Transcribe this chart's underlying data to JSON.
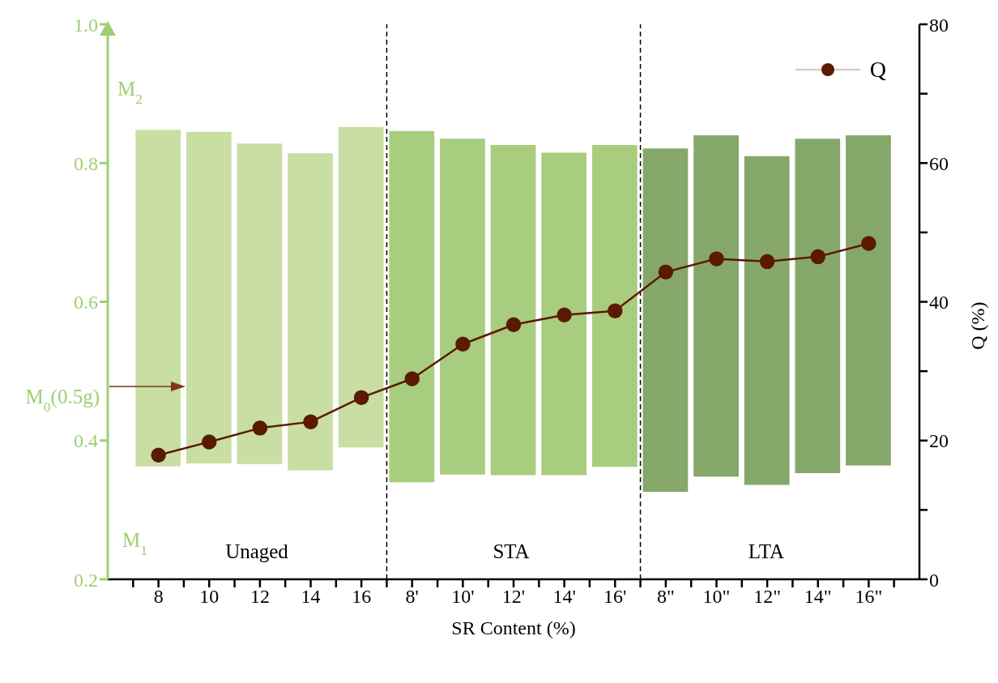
{
  "chart_data": {
    "type": "bar",
    "xlabel": "SR Content (%)",
    "y2label": "Q (%)",
    "categories": [
      "8",
      "10",
      "12",
      "14",
      "16",
      "8'",
      "10'",
      "12'",
      "14'",
      "16'",
      "8\"",
      "10\"",
      "12\"",
      "14\"",
      "16\""
    ],
    "ylim": [
      0.2,
      1.0
    ],
    "yticks": [
      0.2,
      0.4,
      0.6,
      0.8,
      {
        "value": 1.0,
        "label": "1.0"
      }
    ],
    "y2lim": [
      0,
      80
    ],
    "y2ticks": [
      0,
      {
        "value": 10,
        "label": null
      },
      20,
      {
        "value": 30,
        "label": null
      },
      40,
      {
        "value": 50,
        "label": null
      },
      60,
      {
        "value": 70,
        "label": null
      },
      80
    ],
    "series": [
      {
        "base": [
          0.363,
          0.367,
          0.366,
          0.357,
          0.39,
          0.34,
          0.351,
          0.35,
          0.35,
          0.362,
          0.326,
          0.348,
          0.336,
          0.353,
          0.364
        ],
        "values": [
          0.485,
          0.478,
          0.462,
          0.457,
          0.462,
          0.506,
          0.484,
          0.476,
          0.465,
          0.464,
          0.495,
          0.492,
          0.474,
          0.482,
          0.476
        ],
        "colors": [
          "#c8dea3",
          "#c8dea3",
          "#c8dea3",
          "#c8dea3",
          "#c8dea3",
          "#a9cd7e",
          "#a9cd7e",
          "#a9cd7e",
          "#a9cd7e",
          "#a9cd7e",
          "#85a86a",
          "#85a86a",
          "#85a86a",
          "#85a86a",
          "#85a86a"
        ]
      },
      {
        "type": "line",
        "name": "Q",
        "axis": "y2",
        "color": "#5a1a04",
        "marker": "circle",
        "values": [
          17.9,
          19.8,
          21.8,
          22.7,
          26.2,
          28.9,
          33.9,
          36.7,
          38.1,
          38.7,
          44.3,
          46.2,
          45.8,
          46.5,
          48.4
        ]
      }
    ],
    "annotations": [
      "M$_{2}$",
      "M$_{1}$",
      "M$_{0}$(0.5g)",
      "Unaged",
      "STA",
      "LTA"
    ],
    "legend": "top right",
    "grid": false
  }
}
